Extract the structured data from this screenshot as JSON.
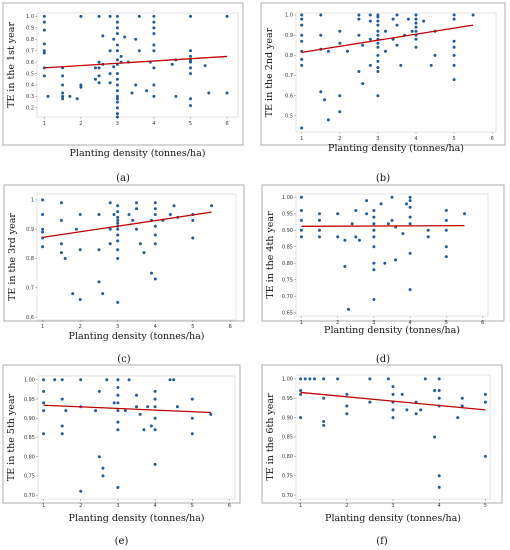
{
  "colors": {
    "point": "#1f5b9c",
    "fit_line": "#c00000",
    "frame": "#9a9a9a",
    "plot_bg": "#ffffff",
    "figure_bg": "#ffffff"
  },
  "chart_data": [
    {
      "panel": "(a)",
      "type": "scatter",
      "title": "",
      "xlabel": "Planting density (tonnes/ha)",
      "ylabel": "TE in the 1st year",
      "xlim": [
        0.8,
        6.3
      ],
      "ylim": [
        0.12,
        1.03
      ],
      "xticks": [
        1,
        2,
        3,
        4,
        5,
        6
      ],
      "yticks": [
        0.2,
        0.3,
        0.4,
        0.5,
        0.6,
        0.7,
        0.8,
        0.9,
        1.0
      ],
      "ytick_labels": [
        "0.2",
        "0.3",
        "0.4",
        "0.5",
        "0.6",
        "0.7",
        "0.8",
        "0.9",
        "1.0"
      ],
      "grid": false,
      "fit_line": {
        "x": [
          1,
          6
        ],
        "y": [
          0.55,
          0.65
        ]
      },
      "points": {
        "x": [
          1,
          1,
          1,
          1,
          1,
          1,
          1,
          1,
          1.1,
          1.5,
          1.5,
          1.5,
          1.5,
          1.5,
          1.5,
          1.7,
          1.9,
          2,
          2,
          2,
          2.4,
          2.4,
          2.5,
          2.5,
          2.5,
          2.5,
          2.5,
          2.6,
          2.6,
          2.8,
          2.8,
          2.8,
          2.8,
          2.9,
          2.9,
          3,
          3,
          3,
          3,
          3,
          3,
          3,
          3,
          3,
          3,
          3,
          3,
          3,
          3,
          3,
          3,
          3,
          3,
          3.1,
          3.1,
          3.2,
          3.3,
          3.4,
          3.5,
          3.5,
          3.6,
          3.6,
          3.8,
          3.9,
          4,
          4,
          4,
          4,
          4,
          4,
          4,
          4,
          4,
          4.5,
          4.6,
          4.6,
          5,
          5,
          5,
          5,
          5,
          5,
          5,
          5,
          5,
          5.4,
          5.5,
          6,
          6
        ],
        "y": [
          1,
          0.95,
          0.88,
          0.76,
          0.7,
          0.68,
          0.55,
          0.48,
          0.3,
          0.55,
          0.48,
          0.4,
          0.33,
          0.3,
          0.28,
          0.3,
          0.28,
          1,
          0.4,
          0.38,
          0.55,
          0.45,
          1,
          0.6,
          0.55,
          0.48,
          0.42,
          0.83,
          0.58,
          1,
          0.7,
          0.5,
          0.42,
          0.8,
          0.56,
          1,
          0.95,
          0.9,
          0.85,
          0.75,
          0.7,
          0.62,
          0.58,
          0.5,
          0.45,
          0.4,
          0.35,
          0.3,
          0.28,
          0.25,
          0.2,
          0.15,
          0.12,
          0.65,
          0.6,
          0.82,
          0.6,
          0.33,
          0.8,
          0.4,
          1,
          0.7,
          0.35,
          0.6,
          1,
          0.95,
          0.9,
          0.85,
          0.75,
          0.7,
          0.55,
          0.4,
          0.3,
          0.58,
          0.62,
          0.3,
          1,
          0.7,
          0.65,
          0.62,
          0.6,
          0.55,
          0.5,
          0.28,
          0.22,
          0.57,
          0.33,
          1,
          0.33
        ]
      }
    },
    {
      "panel": "(b)",
      "type": "scatter",
      "title": "",
      "xlabel": "Planting density (tonnes/ha)",
      "ylabel": "TE in the 2nd year",
      "xlim": [
        0.85,
        6.1
      ],
      "ylim": [
        0.42,
        1.01
      ],
      "xticks": [
        1,
        2,
        3,
        4,
        5,
        6
      ],
      "yticks": [
        0.5,
        0.6,
        0.7,
        0.8,
        0.9,
        1.0
      ],
      "ytick_labels": [
        "0.5",
        "0.6",
        "0.7",
        "0.8",
        "0.9",
        "1.0"
      ],
      "grid": false,
      "fit_line": {
        "x": [
          1,
          5.5
        ],
        "y": [
          0.815,
          0.95
        ]
      },
      "points": {
        "x": [
          1,
          1,
          1,
          1,
          1,
          1,
          1,
          1,
          1,
          1.5,
          1.5,
          1.5,
          1.5,
          1.6,
          1.7,
          1.7,
          2,
          2,
          2,
          2,
          2.2,
          2.5,
          2.5,
          2.5,
          2.5,
          2.6,
          2.6,
          2.8,
          2.8,
          2.8,
          2.8,
          3,
          3,
          3,
          3,
          3,
          3,
          3,
          3,
          3,
          3,
          3,
          3,
          3,
          3,
          3.2,
          3.2,
          3.4,
          3.4,
          3.5,
          3.5,
          3.5,
          3.6,
          3.7,
          3.8,
          3.9,
          4,
          4,
          4,
          4,
          4,
          4,
          4,
          4,
          4.2,
          4.4,
          4.5,
          4.5,
          5,
          5,
          5,
          5,
          5,
          5,
          5,
          5.5
        ],
        "y": [
          1,
          0.98,
          0.95,
          0.9,
          0.87,
          0.82,
          0.78,
          0.75,
          0.44,
          1,
          0.9,
          0.83,
          0.62,
          0.58,
          0.82,
          0.48,
          0.92,
          0.86,
          0.6,
          0.52,
          0.82,
          1,
          0.98,
          0.9,
          0.72,
          0.85,
          0.66,
          1,
          0.97,
          0.88,
          0.75,
          1,
          0.99,
          0.97,
          0.95,
          0.92,
          0.9,
          0.88,
          0.86,
          0.84,
          0.8,
          0.77,
          0.74,
          0.72,
          0.6,
          0.92,
          0.82,
          0.98,
          0.88,
          1,
          0.95,
          0.85,
          0.75,
          0.9,
          0.98,
          0.92,
          1,
          0.98,
          0.96,
          0.94,
          0.92,
          0.9,
          0.88,
          0.84,
          0.97,
          0.75,
          0.92,
          0.8,
          1,
          0.98,
          0.87,
          0.84,
          0.8,
          0.75,
          0.68,
          1
        ]
      }
    },
    {
      "panel": "(c)",
      "type": "scatter",
      "title": "",
      "xlabel": "Planting density (tonnes/ha)",
      "ylabel": "TE in the 3rd year",
      "xlim": [
        0.85,
        6.15
      ],
      "ylim": [
        0.59,
        1.02
      ],
      "xticks": [
        1,
        2,
        3,
        4,
        5,
        6
      ],
      "yticks": [
        0.6,
        0.7,
        0.8,
        0.9,
        1.0
      ],
      "ytick_labels": [
        "0.6",
        "0.7",
        "0.8",
        "0.9",
        "1"
      ],
      "grid": false,
      "fit_line": {
        "x": [
          1,
          5.5
        ],
        "y": [
          0.872,
          0.958
        ]
      },
      "points": {
        "x": [
          1,
          1,
          1,
          1,
          1,
          1,
          1.5,
          1.5,
          1.5,
          1.5,
          1.6,
          1.8,
          1.9,
          2,
          2,
          2,
          2.5,
          2.5,
          2.5,
          2.6,
          2.8,
          2.8,
          2.8,
          2.9,
          3,
          3,
          3,
          3,
          3,
          3,
          3,
          3,
          3,
          3,
          3,
          3,
          3.3,
          3.4,
          3.5,
          3.5,
          3.5,
          3.6,
          3.7,
          3.9,
          3.9,
          4,
          4,
          4,
          4,
          4,
          4,
          4,
          4.2,
          4.4,
          4.5,
          4.6,
          5,
          5,
          5,
          5.5
        ],
        "y": [
          1,
          0.95,
          0.9,
          0.89,
          0.87,
          0.84,
          0.99,
          0.93,
          0.85,
          0.82,
          0.8,
          0.68,
          0.9,
          0.95,
          0.83,
          0.66,
          0.95,
          0.83,
          0.72,
          0.68,
          0.99,
          0.9,
          0.85,
          0.95,
          0.98,
          0.96,
          0.94,
          0.93,
          0.92,
          0.91,
          0.9,
          0.88,
          0.86,
          0.83,
          0.8,
          0.65,
          0.95,
          0.93,
          0.99,
          0.97,
          0.9,
          0.85,
          0.82,
          0.93,
          0.75,
          0.99,
          0.97,
          0.95,
          0.91,
          0.88,
          0.85,
          0.73,
          0.93,
          0.95,
          0.98,
          0.94,
          0.95,
          0.93,
          0.87,
          0.98
        ]
      }
    },
    {
      "panel": "(d)",
      "type": "scatter",
      "title": "",
      "xlabel": "Planting density (tonnes/ha)",
      "ylabel": "TE in the 4th year",
      "xlim": [
        0.85,
        6.15
      ],
      "ylim": [
        0.64,
        1.01
      ],
      "xticks": [
        1,
        2,
        3,
        4,
        5,
        6
      ],
      "yticks": [
        0.65,
        0.7,
        0.75,
        0.8,
        0.85,
        0.9,
        0.95,
        1.0
      ],
      "ytick_labels": [
        "0.65",
        "0.70",
        "0.75",
        "0.80",
        "0.85",
        "0.90",
        "0.95",
        "1.00"
      ],
      "grid": false,
      "fit_line": {
        "x": [
          1,
          5.5
        ],
        "y": [
          0.912,
          0.914
        ]
      },
      "points": {
        "x": [
          1,
          1,
          1,
          1,
          1,
          1.5,
          1.5,
          1.5,
          1.5,
          2,
          2,
          2.2,
          2.2,
          2.3,
          2.4,
          2.5,
          2.5,
          2.6,
          2.8,
          2.8,
          3,
          3,
          3,
          3,
          3,
          3,
          3,
          3,
          3,
          3.2,
          3.3,
          3.4,
          3.5,
          3.5,
          3.6,
          3.6,
          3.8,
          3.9,
          4,
          4,
          4,
          4,
          4,
          4,
          4,
          4.5,
          4.5,
          5,
          5,
          5,
          5,
          5,
          5.5
        ],
        "y": [
          1,
          0.96,
          0.93,
          0.9,
          0.88,
          0.95,
          0.93,
          0.9,
          0.88,
          0.95,
          0.88,
          0.87,
          0.79,
          0.66,
          0.92,
          0.96,
          0.88,
          0.87,
          0.99,
          0.95,
          0.96,
          0.94,
          0.92,
          0.9,
          0.88,
          0.85,
          0.8,
          0.78,
          0.69,
          0.98,
          0.8,
          0.92,
          1,
          0.93,
          0.91,
          0.81,
          0.89,
          0.98,
          1,
          0.99,
          0.97,
          0.94,
          0.92,
          0.83,
          0.72,
          0.9,
          0.88,
          0.96,
          0.93,
          0.9,
          0.85,
          0.82,
          0.95
        ]
      }
    },
    {
      "panel": "(e)",
      "type": "scatter",
      "title": "",
      "xlabel": "Planting density (tonnes/ha)",
      "ylabel": "TE in the 5th year",
      "xlim": [
        0.85,
        6.15
      ],
      "ylim": [
        0.69,
        1.01
      ],
      "xticks": [
        1,
        2,
        3,
        4,
        5,
        6
      ],
      "yticks": [
        0.7,
        0.75,
        0.8,
        0.85,
        0.9,
        0.95,
        1.0
      ],
      "ytick_labels": [
        "0.70",
        "0.75",
        "0.80",
        "0.85",
        "0.90",
        "0.95",
        "1.00"
      ],
      "grid": false,
      "fit_line": {
        "x": [
          1,
          5.5
        ],
        "y": [
          0.934,
          0.915
        ]
      },
      "points": {
        "x": [
          1,
          1,
          1,
          1,
          1,
          1.3,
          1.5,
          1.5,
          1.5,
          1.5,
          1.6,
          2,
          2,
          2,
          2.4,
          2.5,
          2.5,
          2.6,
          2.6,
          2.7,
          2.9,
          3,
          3,
          3,
          3,
          3,
          3,
          3,
          3,
          3.2,
          3.3,
          3.5,
          3.5,
          3.6,
          3.7,
          3.8,
          3.9,
          4,
          4,
          4,
          4,
          4,
          4,
          4.4,
          4.5,
          4.6,
          5,
          5,
          5,
          5.5
        ],
        "y": [
          1,
          0.97,
          0.94,
          0.92,
          0.86,
          1,
          1,
          0.95,
          0.88,
          0.86,
          0.92,
          1,
          0.93,
          0.71,
          0.92,
          0.97,
          0.8,
          0.77,
          0.75,
          1,
          0.94,
          1,
          0.98,
          0.96,
          0.94,
          0.92,
          0.89,
          0.87,
          0.72,
          0.92,
          1,
          0.96,
          0.93,
          0.91,
          0.87,
          0.93,
          0.88,
          0.97,
          0.95,
          0.93,
          0.9,
          0.87,
          0.78,
          1,
          1,
          0.93,
          0.95,
          0.9,
          0.86,
          0.91
        ]
      }
    },
    {
      "panel": "(f)",
      "type": "scatter",
      "title": "",
      "xlabel": "Planting density (tonnes/ha)",
      "ylabel": "TE in the 6th year",
      "xlim": [
        0.9,
        5.1
      ],
      "ylim": [
        0.69,
        1.01
      ],
      "xticks": [
        1,
        2,
        3,
        4,
        5
      ],
      "yticks": [
        0.7,
        0.75,
        0.8,
        0.85,
        0.9,
        0.95,
        1.0
      ],
      "ytick_labels": [
        "0.70",
        "0.75",
        "0.80",
        "0.85",
        "0.90",
        "0.95",
        "1.00"
      ],
      "grid": false,
      "fit_line": {
        "x": [
          1,
          5
        ],
        "y": [
          0.965,
          0.92
        ]
      },
      "points": {
        "x": [
          1,
          1,
          1,
          1,
          1.1,
          1.2,
          1.3,
          1.5,
          1.5,
          1.5,
          1.5,
          1.8,
          2,
          2,
          2,
          2.5,
          2.5,
          2.9,
          3,
          3,
          3,
          3,
          3,
          3.2,
          3.3,
          3.5,
          3.5,
          3.6,
          3.7,
          3.9,
          3.9,
          4,
          4,
          4,
          4,
          4,
          4,
          4.4,
          4.5,
          4.5,
          5,
          5,
          5
        ],
        "y": [
          1,
          0.97,
          0.96,
          0.9,
          1,
          1,
          1,
          1,
          0.95,
          0.89,
          0.88,
          1,
          0.96,
          0.93,
          0.91,
          1,
          0.94,
          1,
          0.98,
          0.96,
          0.94,
          0.92,
          0.9,
          0.96,
          0.92,
          0.94,
          0.91,
          0.92,
          1,
          0.97,
          0.85,
          1,
          0.97,
          0.95,
          0.93,
          0.75,
          0.72,
          0.9,
          0.95,
          0.93,
          0.96,
          0.94,
          0.8
        ]
      }
    }
  ]
}
